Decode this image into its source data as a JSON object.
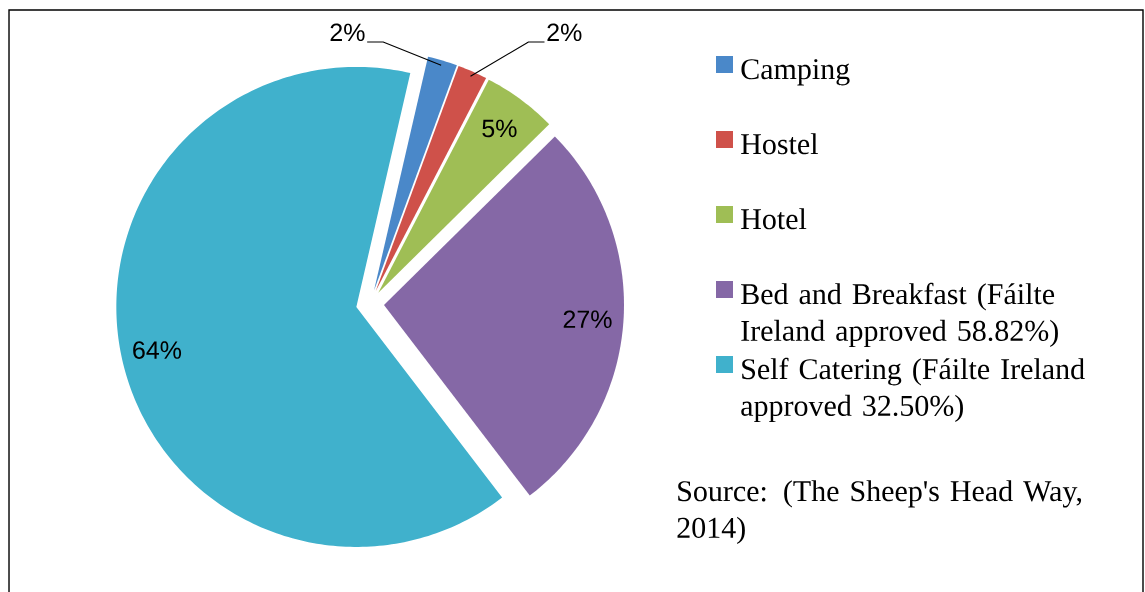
{
  "chart_data": {
    "type": "pie",
    "categories": [
      "Camping",
      "Hostel",
      "Hotel",
      "Bed and Breakfast (Fáilte Ireland approved 58.82%)",
      "Self Catering (Fáilte Ireland approved 32.50%)"
    ],
    "values": [
      2,
      2,
      5,
      27,
      64
    ],
    "colors": [
      "#4a88c9",
      "#cf514a",
      "#9fbe55",
      "#8568a6",
      "#40b1cc"
    ],
    "value_labels": [
      "2%",
      "2%",
      "5%",
      "27%",
      "64%"
    ],
    "legend": "right",
    "annotations": [
      "Source: (The Sheep's Head Way, 2014)"
    ]
  }
}
